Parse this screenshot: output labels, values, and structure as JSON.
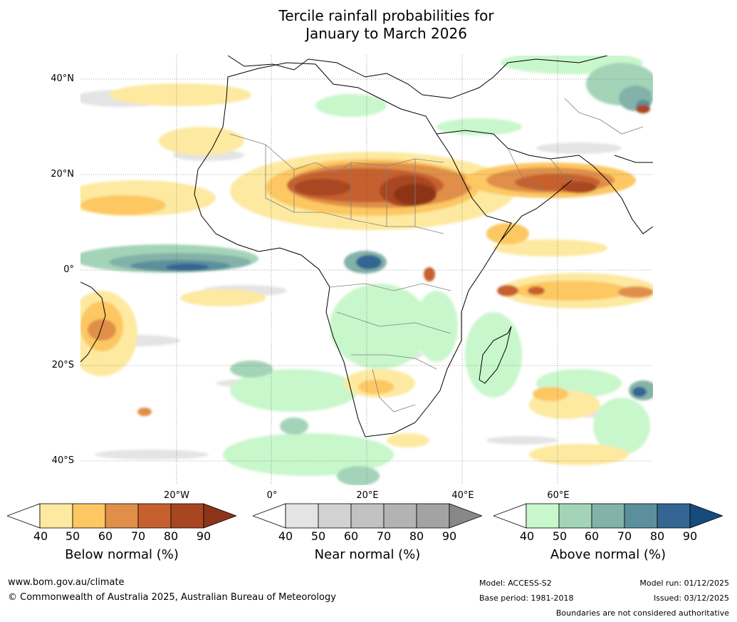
{
  "title": {
    "line1": "Tercile rainfall probabilities for",
    "line2": "January to March 2026"
  },
  "map": {
    "lat_labels": [
      "40°N",
      "20°N",
      "0°",
      "20°S",
      "40°S"
    ],
    "lon_labels": [
      "20°W",
      "0°",
      "20°E",
      "40°E",
      "60°E"
    ],
    "ocean_color": "#ffffff",
    "land_outline_color": "#000000",
    "border_color": "#808080"
  },
  "legends": [
    {
      "title": "Below normal (%)",
      "ticks": [
        "40",
        "50",
        "60",
        "70",
        "80",
        "90"
      ],
      "colors": [
        "#ffffff",
        "#fde9a0",
        "#fdc762",
        "#df8f4a",
        "#c6612f",
        "#a84622",
        "#8c3418"
      ]
    },
    {
      "title": "Near normal (%)",
      "ticks": [
        "40",
        "50",
        "60",
        "70",
        "80",
        "90"
      ],
      "colors": [
        "#ffffff",
        "#e4e4e4",
        "#d2d2d2",
        "#c2c2c2",
        "#b3b3b3",
        "#a3a3a3",
        "#888888"
      ]
    },
    {
      "title": "Above normal (%)",
      "ticks": [
        "40",
        "50",
        "60",
        "70",
        "80",
        "90"
      ],
      "colors": [
        "#ffffff",
        "#c9f7cc",
        "#a4d4b8",
        "#82b2a8",
        "#5c8f9c",
        "#356592",
        "#164b7c"
      ]
    }
  ],
  "footer": {
    "website": "www.bom.gov.au/climate",
    "copyright": "© Commonwealth of Australia 2025, Australian Bureau of Meteorology",
    "model": "Model: ACCESS-S2",
    "base_period": "Base period: 1981-2018",
    "model_run": "Model run: 01/12/2025",
    "issued": "Issued: 03/12/2025",
    "disclaimer": "Boundaries are not considered authoritative"
  }
}
